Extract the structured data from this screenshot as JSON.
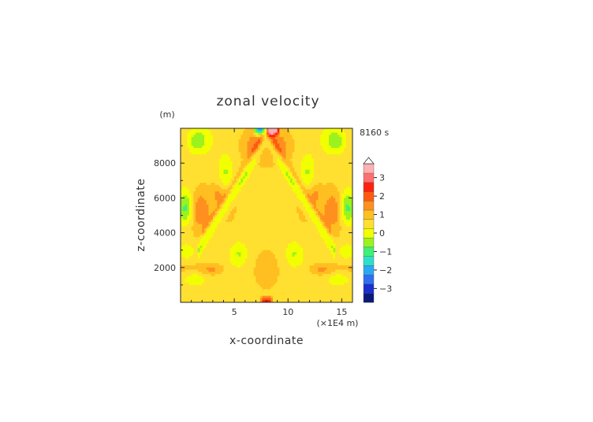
{
  "chart_data": {
    "type": "heatmap",
    "title": "zonal velocity",
    "time_label": "8160 s",
    "xlabel": "x-coordinate",
    "ylabel": "z-coordinate",
    "x_unit": "(×1E4 m)",
    "y_unit": "(m)",
    "xlim": [
      0.0,
      16.0
    ],
    "ylim": [
      0,
      10000
    ],
    "x_ticks": [
      5,
      10,
      15
    ],
    "y_ticks": [
      2000,
      4000,
      6000,
      8000
    ],
    "x_tick_labels": [
      "5",
      "10",
      "15"
    ],
    "y_tick_labels": [
      "2000",
      "4000",
      "6000",
      "8000"
    ],
    "colorbar": {
      "levels": [
        -3.5,
        -3,
        -2.5,
        -2,
        -1.5,
        -1,
        -0.5,
        0,
        0.5,
        1,
        1.5,
        2,
        2.5,
        3,
        3.5
      ],
      "colors": [
        "#0a1a7a",
        "#1a2fd0",
        "#2f6ef0",
        "#2ba8f5",
        "#2ee0c8",
        "#3ef07a",
        "#9bf21e",
        "#f2ff00",
        "#ffe030",
        "#ffbf20",
        "#ff9020",
        "#ff5a10",
        "#ff2010",
        "#ff6f6f",
        "#ffb0b0"
      ],
      "tick_labels": [
        "3",
        "2",
        "1",
        "0",
        "−1",
        "−2",
        "−3"
      ],
      "extend": "max"
    }
  }
}
